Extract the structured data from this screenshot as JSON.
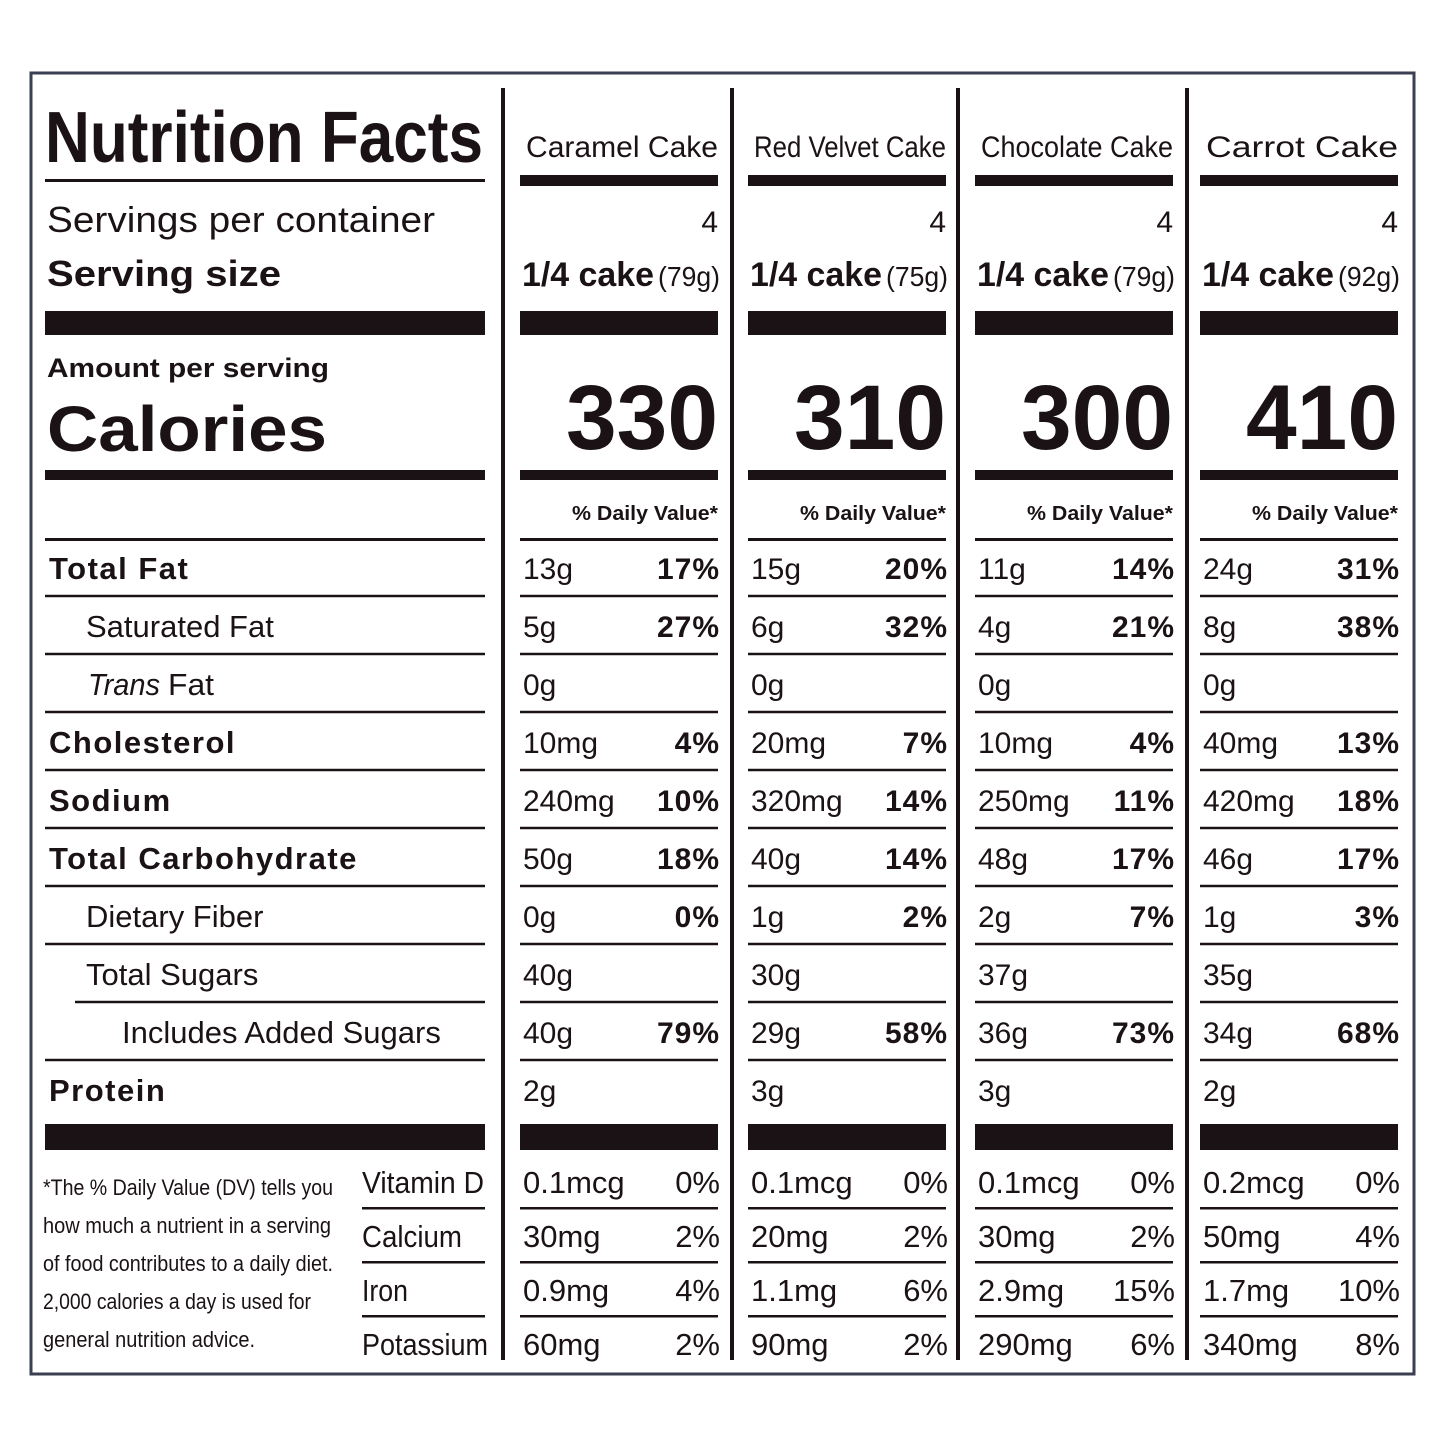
{
  "title": "Nutrition Facts",
  "labels": {
    "servings_per_container": "Servings per container",
    "serving_size": "Serving size",
    "amount_per_serving": "Amount per serving",
    "calories": "Calories",
    "daily_value": "% Daily Value*"
  },
  "nutrients": [
    {
      "label": "Total Fat"
    },
    {
      "label": "Saturated Fat"
    },
    {
      "italic": "Trans",
      "label": "Fat"
    },
    {
      "label": "Cholesterol"
    },
    {
      "label": "Sodium"
    },
    {
      "label": "Total Carbohydrate"
    },
    {
      "label": "Dietary Fiber"
    },
    {
      "label": "Total Sugars"
    },
    {
      "label": "Includes Added Sugars"
    },
    {
      "label": "Protein"
    }
  ],
  "vitamins": [
    "Vitamin D",
    "Calcium",
    "Iron",
    "Potassium"
  ],
  "footnote": [
    "*The % Daily Value (DV) tells you",
    "how much a nutrient in a serving",
    "of food contributes to a daily diet.",
    "2,000 calories a day is used for",
    "general nutrition advice."
  ],
  "columns": [
    {
      "name": "Caramel Cake",
      "servings": "4",
      "serving_size": "1/4 cake",
      "serving_weight": "(79g)",
      "calories": "330",
      "nutrients": [
        [
          "13g",
          "17%"
        ],
        [
          "5g",
          "27%"
        ],
        [
          "0g"
        ],
        [
          "10mg",
          "4%"
        ],
        [
          "240mg",
          "10%"
        ],
        [
          "50g",
          "18%"
        ],
        [
          "0g",
          "0%"
        ],
        [
          "40g"
        ],
        [
          "40g",
          "79%"
        ],
        [
          "2g"
        ]
      ],
      "vitamins": [
        [
          "0.1mcg",
          "0%"
        ],
        [
          "30mg",
          "2%"
        ],
        [
          "0.9mg",
          "4%"
        ],
        [
          "60mg",
          "2%"
        ]
      ]
    },
    {
      "name": "Red Velvet Cake",
      "servings": "4",
      "serving_size": "1/4 cake",
      "serving_weight": "(75g)",
      "calories": "310",
      "nutrients": [
        [
          "15g",
          "20%"
        ],
        [
          "6g",
          "32%"
        ],
        [
          "0g"
        ],
        [
          "20mg",
          "7%"
        ],
        [
          "320mg",
          "14%"
        ],
        [
          "40g",
          "14%"
        ],
        [
          "1g",
          "2%"
        ],
        [
          "30g"
        ],
        [
          "29g",
          "58%"
        ],
        [
          "3g"
        ]
      ],
      "vitamins": [
        [
          "0.1mcg",
          "0%"
        ],
        [
          "20mg",
          "2%"
        ],
        [
          "1.1mg",
          "6%"
        ],
        [
          "90mg",
          "2%"
        ]
      ]
    },
    {
      "name": "Chocolate Cake",
      "servings": "4",
      "serving_size": "1/4 cake",
      "serving_weight": "(79g)",
      "calories": "300",
      "nutrients": [
        [
          "11g",
          "14%"
        ],
        [
          "4g",
          "21%"
        ],
        [
          "0g"
        ],
        [
          "10mg",
          "4%"
        ],
        [
          "250mg",
          "11%"
        ],
        [
          "48g",
          "17%"
        ],
        [
          "2g",
          "7%"
        ],
        [
          "37g"
        ],
        [
          "36g",
          "73%"
        ],
        [
          "3g"
        ]
      ],
      "vitamins": [
        [
          "0.1mcg",
          "0%"
        ],
        [
          "30mg",
          "2%"
        ],
        [
          "2.9mg",
          "15%"
        ],
        [
          "290mg",
          "6%"
        ]
      ]
    },
    {
      "name": "Carrot Cake",
      "servings": "4",
      "serving_size": "1/4 cake",
      "serving_weight": "(92g)",
      "calories": "410",
      "nutrients": [
        [
          "24g",
          "31%"
        ],
        [
          "8g",
          "38%"
        ],
        [
          "0g"
        ],
        [
          "40mg",
          "13%"
        ],
        [
          "420mg",
          "18%"
        ],
        [
          "46g",
          "17%"
        ],
        [
          "1g",
          "3%"
        ],
        [
          "35g"
        ],
        [
          "34g",
          "68%"
        ],
        [
          "2g"
        ]
      ],
      "vitamins": [
        [
          "0.2mcg",
          "0%"
        ],
        [
          "50mg",
          "4%"
        ],
        [
          "1.7mg",
          "10%"
        ],
        [
          "340mg",
          "8%"
        ]
      ]
    }
  ]
}
